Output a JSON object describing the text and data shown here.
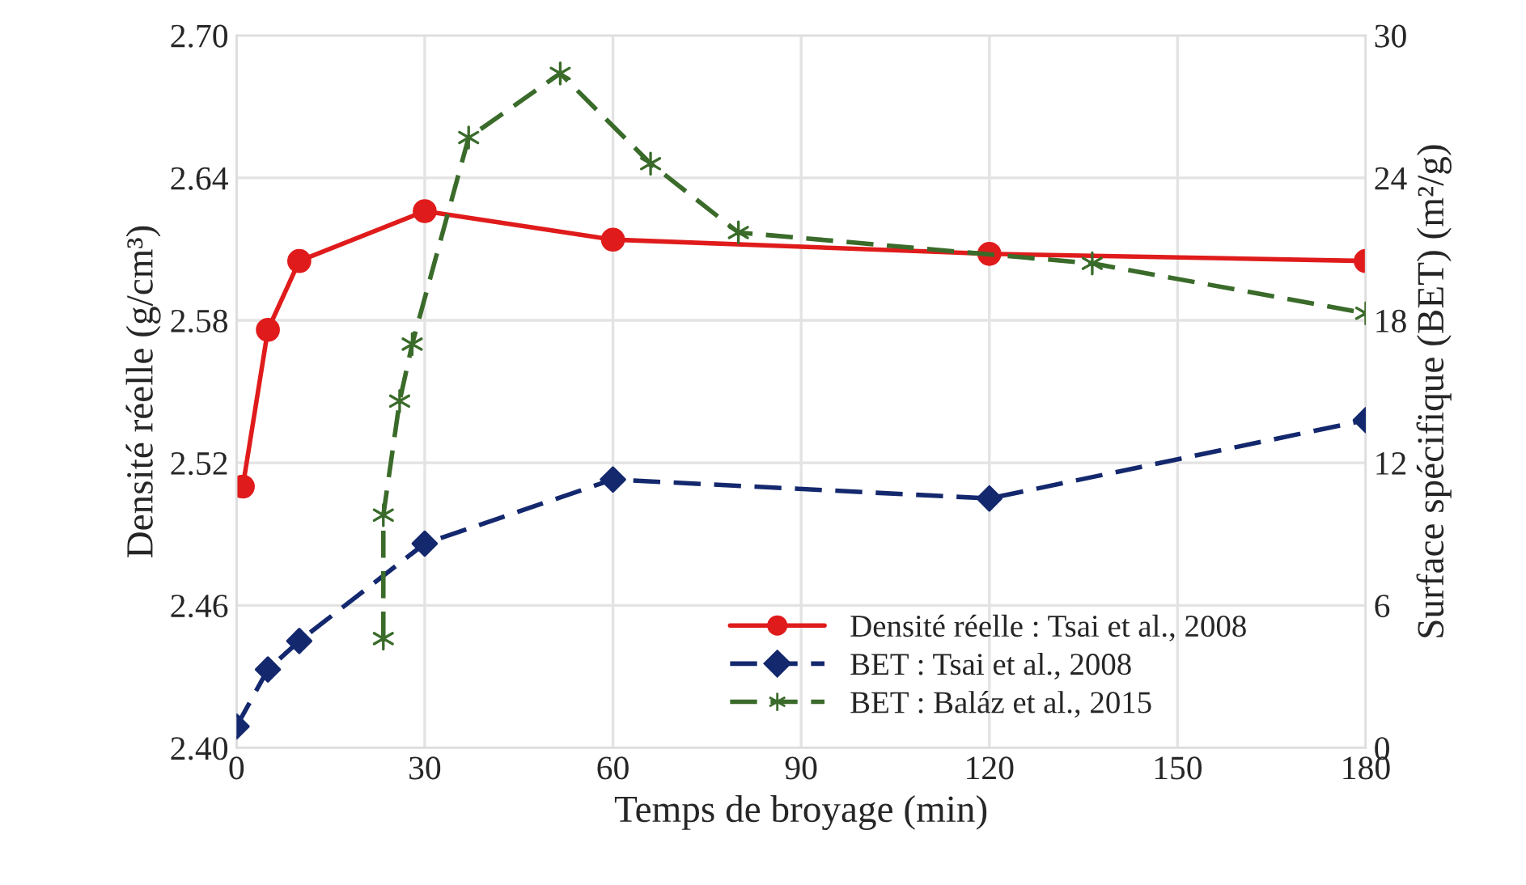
{
  "chart_data": {
    "type": "line",
    "xlabel": "Temps de broyage (min)",
    "ylabel": "Densité réelle (g/cm³)",
    "y2label": "Surface spécifique (BET) (m²/g)",
    "series": [
      {
        "name": "Densité réelle : Tsai et al., 2008",
        "color": "#e01b1b",
        "marker": "circle",
        "line_style": "solid",
        "x": [
          1,
          5,
          10,
          30,
          60,
          120,
          180
        ],
        "values": [
          2.51,
          2.576,
          2.605,
          2.626,
          2.614,
          2.608,
          2.605
        ]
      },
      {
        "name": "BET : Tsai et al., 2008",
        "color": "#14286e",
        "marker": "diamond",
        "line_style": "dashed",
        "axis": "y2",
        "x": [
          0,
          5,
          10,
          30,
          60,
          120,
          180
        ],
        "values": [
          0.9,
          3.3,
          4.5,
          8.6,
          11.3,
          10.5,
          13.8
        ]
      },
      {
        "name": "BET : Baláz et al., 2015",
        "color": "#3a6b2a",
        "marker": "cross",
        "line_style": "dashed",
        "axis": "y2",
        "x": [
          23.4,
          23.4,
          26,
          28,
          37,
          51.6,
          66,
          80,
          136.4,
          180
        ],
        "values": [
          4.6,
          9.8,
          14.6,
          17,
          25.7,
          28.4,
          24.6,
          21.7,
          20.4,
          18.3
        ]
      }
    ],
    "xlim": [
      0,
      180
    ],
    "xticks": [
      0,
      30,
      60,
      90,
      120,
      150,
      180
    ],
    "ylim": [
      2.4,
      2.7
    ],
    "yticks": [
      {
        "value": 2.4,
        "label": "2.40"
      },
      {
        "value": 2.46,
        "label": "2.46"
      },
      {
        "value": 2.52,
        "label": "2.52"
      },
      {
        "value": 2.58,
        "label": "2.58"
      },
      {
        "value": 2.64,
        "label": "2.64"
      },
      {
        "value": 2.7,
        "label": "2.70"
      }
    ],
    "y2lim": [
      0,
      30
    ],
    "y2ticks": [
      0,
      6,
      12,
      18,
      24,
      30
    ],
    "grid": true,
    "legend": "bottom right"
  }
}
